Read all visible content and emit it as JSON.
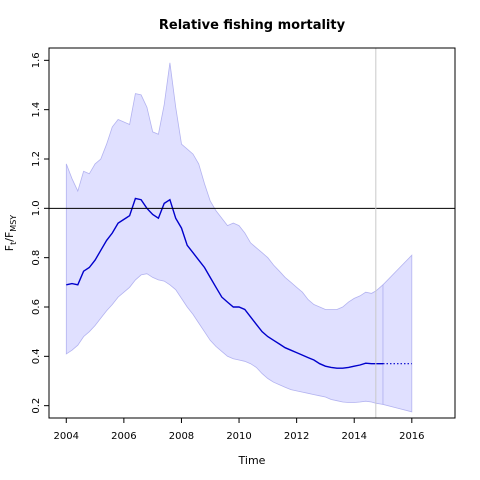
{
  "chart_data": {
    "type": "line",
    "title": "Relative fishing mortality",
    "xlabel": "Time",
    "ylabel": {
      "main": "F",
      "sub1": "t",
      "sep": "/F",
      "sub2": "MSY"
    },
    "xlim": [
      2003.4,
      2017.5
    ],
    "ylim": [
      0.15,
      1.65
    ],
    "xticks": [
      "2004",
      "2006",
      "2008",
      "2010",
      "2012",
      "2014",
      "2016"
    ],
    "yticks": [
      "0.2",
      "0.4",
      "0.6",
      "0.8",
      "1.0",
      "1.2",
      "1.4",
      "1.6"
    ],
    "reference_line": {
      "y": 1.0
    },
    "vertical_marker": {
      "x": 2014.75
    },
    "colors": {
      "line": "#0000cc",
      "band_fill": "#e0e0ff",
      "band_edge": "#b3b3f0",
      "marker": "#c8c8c8"
    },
    "series": [
      {
        "x": [
          2004.0,
          2004.2,
          2004.4,
          2004.6,
          2004.8,
          2005.0,
          2005.2,
          2005.4,
          2005.6,
          2005.8,
          2006.0,
          2006.2,
          2006.4,
          2006.6,
          2006.8,
          2007.0,
          2007.2,
          2007.4,
          2007.6,
          2007.8,
          2008.0,
          2008.2,
          2008.4,
          2008.6,
          2008.8,
          2009.0,
          2009.2,
          2009.4,
          2009.6,
          2009.8,
          2010.0,
          2010.2,
          2010.4,
          2010.6,
          2010.8,
          2011.0,
          2011.2,
          2011.4,
          2011.6,
          2011.8,
          2012.0,
          2012.2,
          2012.4,
          2012.6,
          2012.8,
          2013.0,
          2013.2,
          2013.4,
          2013.6,
          2013.8,
          2014.0,
          2014.2,
          2014.4,
          2014.6,
          2014.75,
          2015.0
        ],
        "values": [
          0.69,
          0.695,
          0.69,
          0.745,
          0.76,
          0.79,
          0.83,
          0.87,
          0.9,
          0.94,
          0.955,
          0.97,
          1.04,
          1.035,
          1.0,
          0.975,
          0.96,
          1.02,
          1.035,
          0.96,
          0.92,
          0.85,
          0.82,
          0.79,
          0.76,
          0.72,
          0.68,
          0.64,
          0.62,
          0.6,
          0.6,
          0.59,
          0.56,
          0.53,
          0.5,
          0.48,
          0.465,
          0.45,
          0.435,
          0.425,
          0.415,
          0.405,
          0.395,
          0.385,
          0.37,
          0.36,
          0.355,
          0.352,
          0.352,
          0.355,
          0.36,
          0.365,
          0.372,
          0.37,
          0.37,
          0.37
        ],
        "lower": [
          0.41,
          0.425,
          0.445,
          0.48,
          0.5,
          0.525,
          0.555,
          0.585,
          0.61,
          0.64,
          0.66,
          0.68,
          0.71,
          0.73,
          0.735,
          0.72,
          0.71,
          0.705,
          0.69,
          0.67,
          0.635,
          0.6,
          0.57,
          0.535,
          0.5,
          0.465,
          0.44,
          0.42,
          0.4,
          0.39,
          0.385,
          0.38,
          0.37,
          0.355,
          0.33,
          0.31,
          0.295,
          0.285,
          0.275,
          0.265,
          0.26,
          0.255,
          0.25,
          0.245,
          0.24,
          0.235,
          0.225,
          0.22,
          0.215,
          0.213,
          0.213,
          0.215,
          0.218,
          0.215,
          0.21,
          0.205
        ],
        "upper": [
          1.18,
          1.12,
          1.07,
          1.15,
          1.14,
          1.18,
          1.2,
          1.26,
          1.33,
          1.36,
          1.35,
          1.34,
          1.465,
          1.46,
          1.41,
          1.31,
          1.3,
          1.42,
          1.59,
          1.41,
          1.26,
          1.24,
          1.22,
          1.18,
          1.1,
          1.03,
          0.99,
          0.96,
          0.93,
          0.94,
          0.93,
          0.9,
          0.86,
          0.84,
          0.82,
          0.8,
          0.77,
          0.745,
          0.72,
          0.7,
          0.68,
          0.66,
          0.63,
          0.61,
          0.6,
          0.59,
          0.59,
          0.59,
          0.6,
          0.62,
          0.635,
          0.645,
          0.66,
          0.655,
          0.665,
          0.69
        ]
      },
      {
        "line_style": "dotted",
        "x": [
          2015.0,
          2015.5,
          2016.0
        ],
        "values": [
          0.37,
          0.37,
          0.37
        ],
        "lower": [
          0.205,
          0.19,
          0.175
        ],
        "upper": [
          0.69,
          0.75,
          0.81
        ]
      }
    ]
  }
}
